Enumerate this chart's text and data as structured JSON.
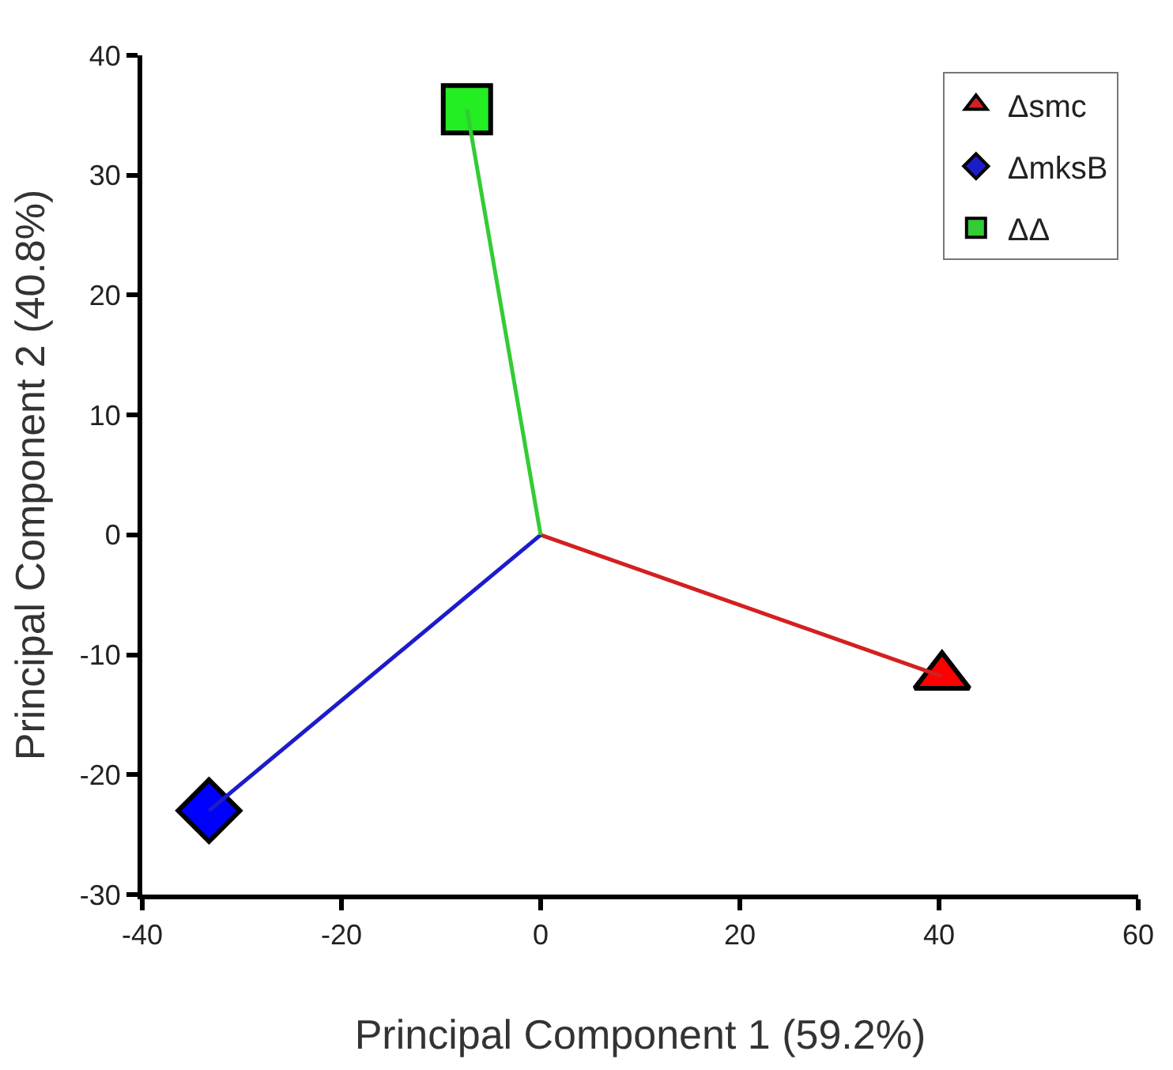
{
  "chart_data": {
    "type": "line",
    "xlabel": "Principal Component 1 (59.2%)",
    "ylabel": "Principal Component 2 (40.8%)",
    "xlim": [
      -40,
      60
    ],
    "xticks": [
      -40,
      -20,
      0,
      20,
      40,
      60
    ],
    "ylim": [
      -30,
      40
    ],
    "yticks": [
      -30,
      -20,
      -10,
      0,
      10,
      20,
      30,
      40
    ],
    "legend": "top right",
    "series": [
      {
        "name": "Δsmc",
        "color": "#d42020",
        "colors": [
          "#d42020",
          "#ff0000"
        ],
        "x": [
          0,
          40.3
        ],
        "values": [
          0,
          -11.8
        ],
        "marker": "triangle"
      },
      {
        "name": "ΔmksB",
        "color": "#1c1cc8",
        "colors": [
          "#1c1cc8",
          "#0000ff"
        ],
        "x": [
          0,
          -33.3
        ],
        "values": [
          0,
          -23.0
        ],
        "marker": "diamond"
      },
      {
        "name": "ΔΔ",
        "color": "#33cc33",
        "colors": [
          "#33cc33",
          "#22ee22"
        ],
        "x": [
          0,
          -7.4
        ],
        "values": [
          0,
          35.5
        ],
        "marker": "square"
      }
    ]
  }
}
